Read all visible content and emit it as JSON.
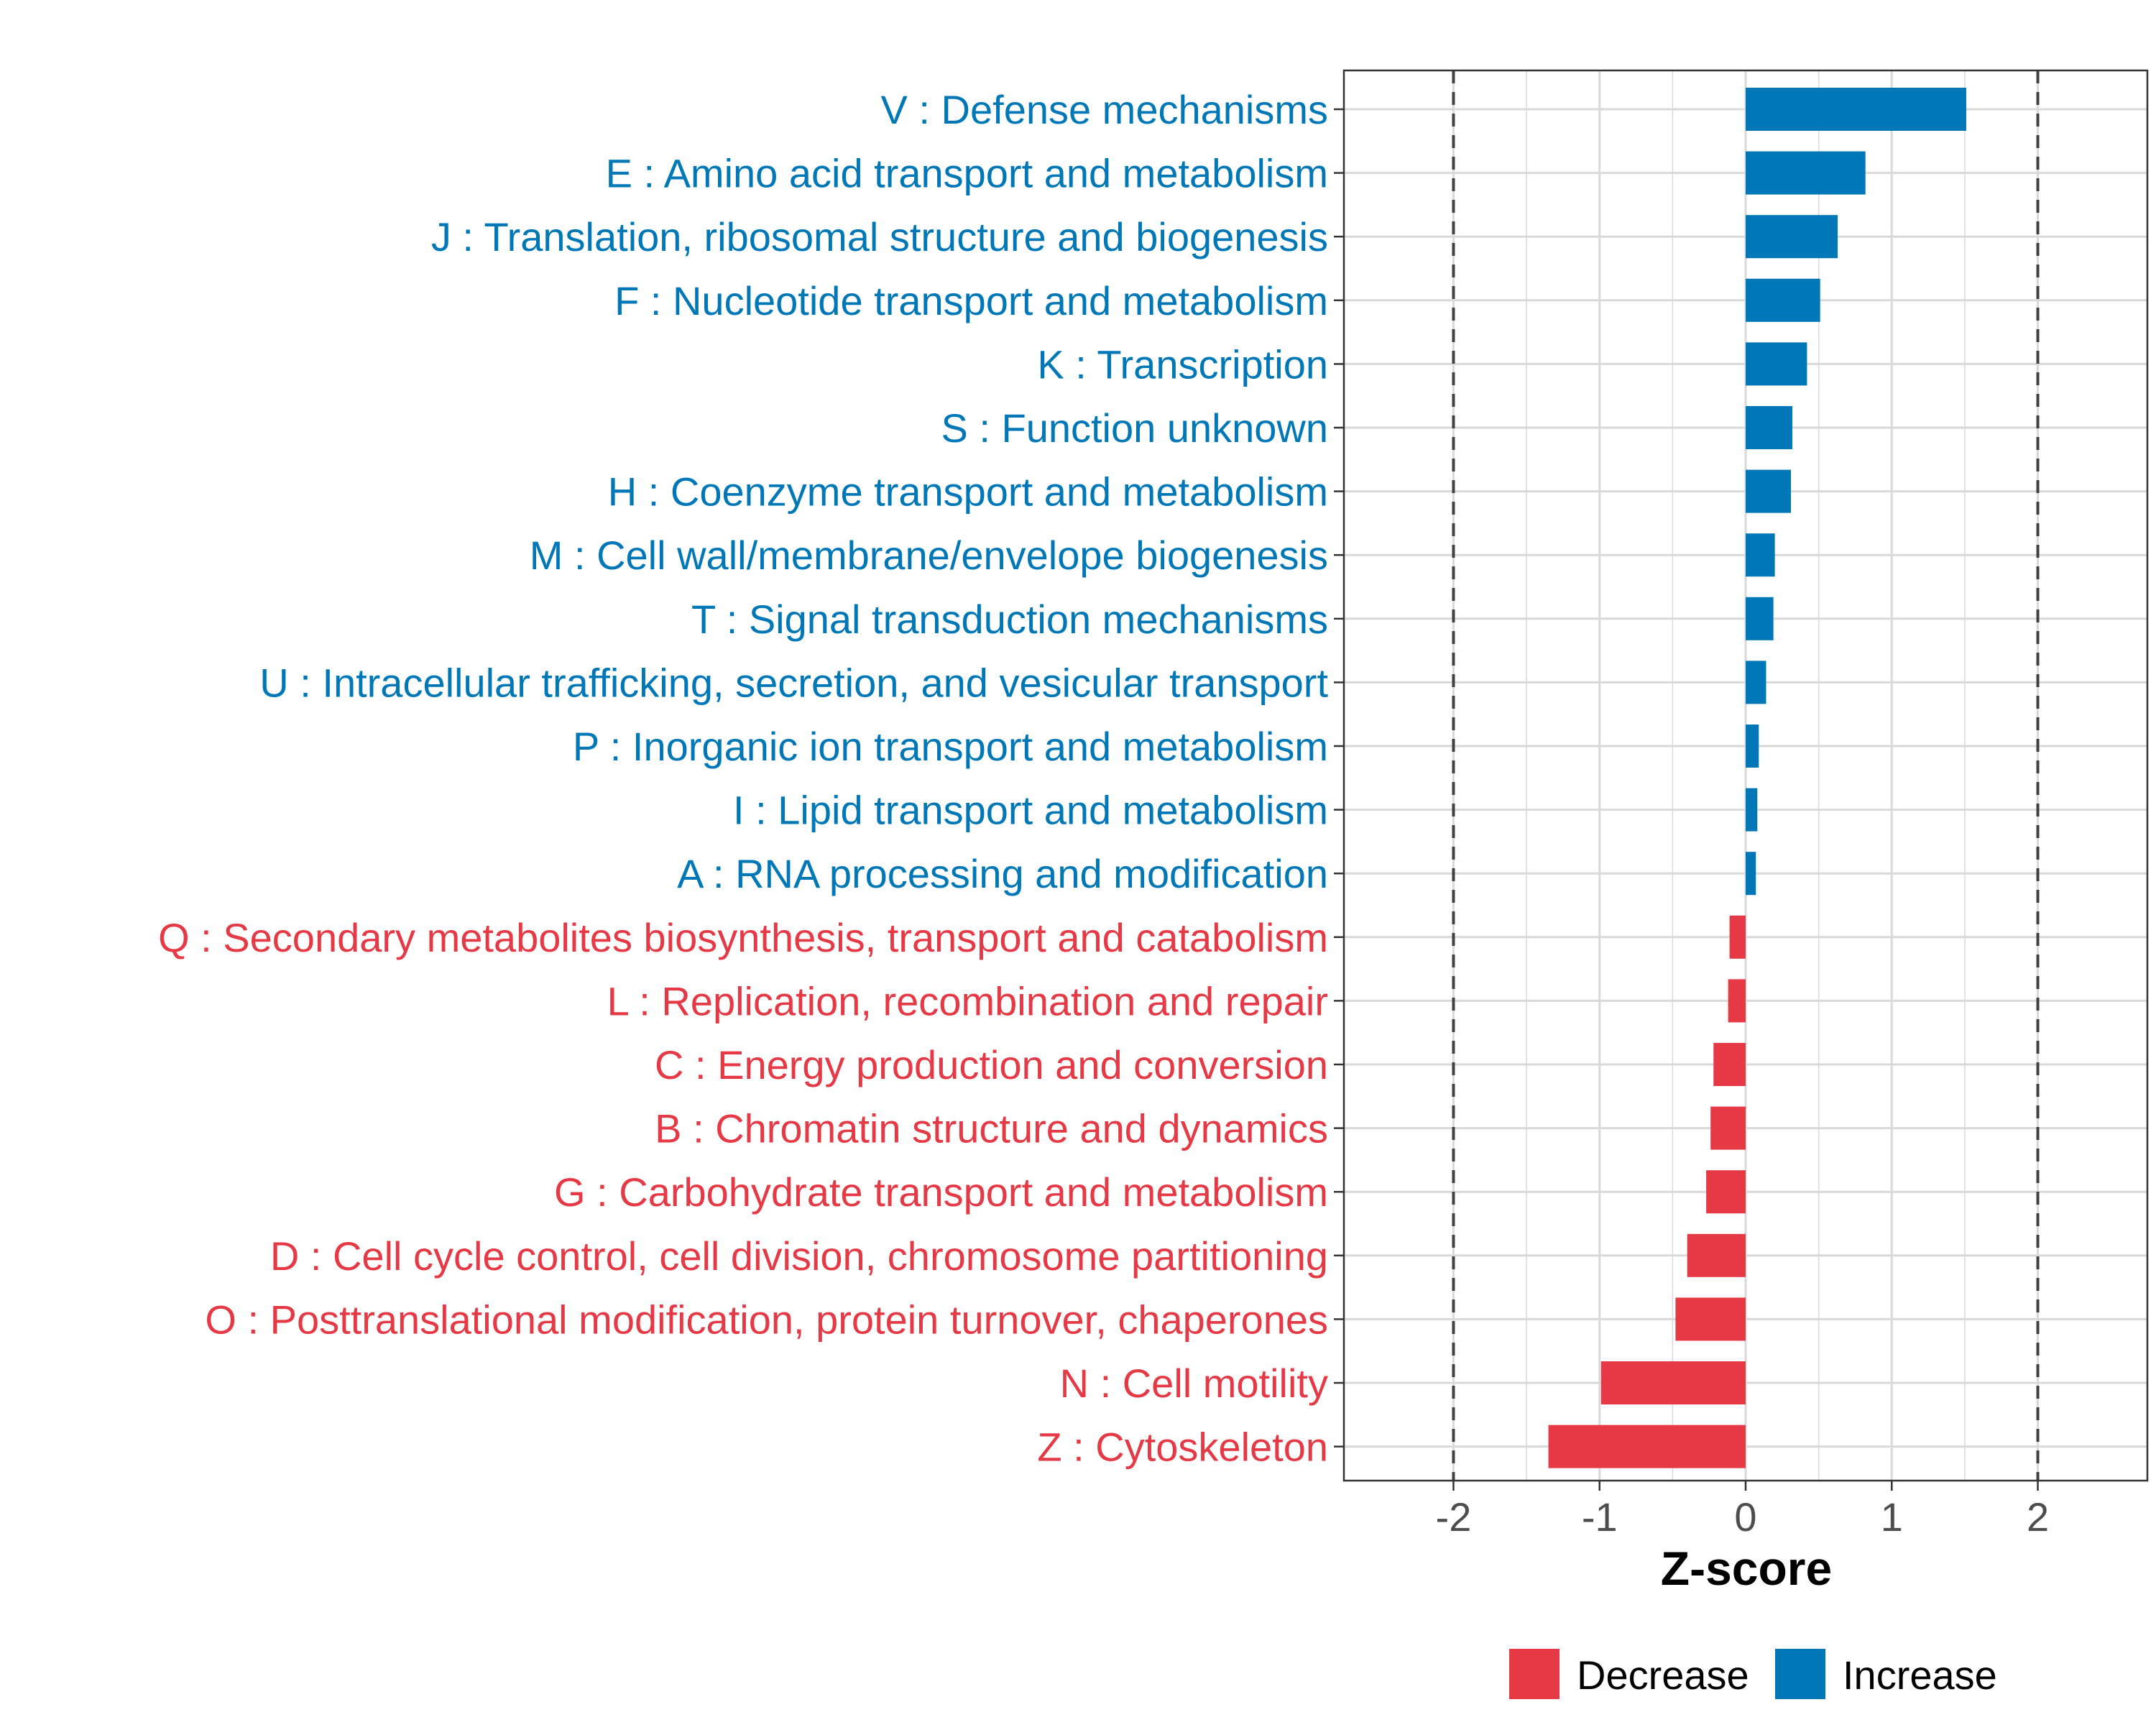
{
  "chart_data": {
    "type": "bar",
    "orientation": "horizontal",
    "xlabel": "Z-score",
    "xlim": [
      -2.75,
      2.75
    ],
    "xticks": [
      -2,
      -1,
      0,
      1,
      2
    ],
    "xtick_labels": [
      "-2",
      "-1",
      "0",
      "1",
      "2"
    ],
    "reference_lines": [
      -2,
      2
    ],
    "grid": true,
    "legend": {
      "position": "bottom",
      "entries": [
        {
          "label": "Decrease",
          "color": "#E63946"
        },
        {
          "label": "Increase",
          "color": "#0077B6"
        }
      ]
    },
    "categories": [
      "V : Defense mechanisms",
      "E : Amino acid transport and metabolism",
      "J : Translation, ribosomal structure and biogenesis",
      "F : Nucleotide transport and metabolism",
      "K : Transcription",
      "S : Function unknown",
      "H : Coenzyme transport and metabolism",
      "M : Cell wall/membrane/envelope biogenesis",
      "T : Signal transduction mechanisms",
      "U : Intracellular trafficking, secretion, and vesicular transport",
      "P : Inorganic ion transport and metabolism",
      "I : Lipid transport and metabolism",
      "A : RNA processing and modification",
      "Q : Secondary metabolites biosynthesis, transport and catabolism",
      "L : Replication, recombination and repair",
      "C : Energy production and conversion",
      "B : Chromatin structure and dynamics",
      "G : Carbohydrate transport and metabolism",
      "D : Cell cycle control, cell division, chromosome partitioning",
      "O : Posttranslational modification, protein turnover, chaperones",
      "N : Cell motility",
      "Z : Cytoskeleton"
    ],
    "values": [
      1.51,
      0.82,
      0.63,
      0.51,
      0.42,
      0.32,
      0.31,
      0.2,
      0.19,
      0.14,
      0.09,
      0.08,
      0.07,
      -0.11,
      -0.12,
      -0.22,
      -0.24,
      -0.27,
      -0.4,
      -0.48,
      -0.99,
      -1.35
    ],
    "groups": [
      "Increase",
      "Increase",
      "Increase",
      "Increase",
      "Increase",
      "Increase",
      "Increase",
      "Increase",
      "Increase",
      "Increase",
      "Increase",
      "Increase",
      "Increase",
      "Decrease",
      "Decrease",
      "Decrease",
      "Decrease",
      "Decrease",
      "Decrease",
      "Decrease",
      "Decrease",
      "Decrease"
    ]
  },
  "colors": {
    "increase": "#0077B6",
    "decrease": "#E63946",
    "grid": "#D9D9D9",
    "axis_text": "#4D4D4D",
    "reference_line": "#404040",
    "panel_border": "#333333"
  }
}
